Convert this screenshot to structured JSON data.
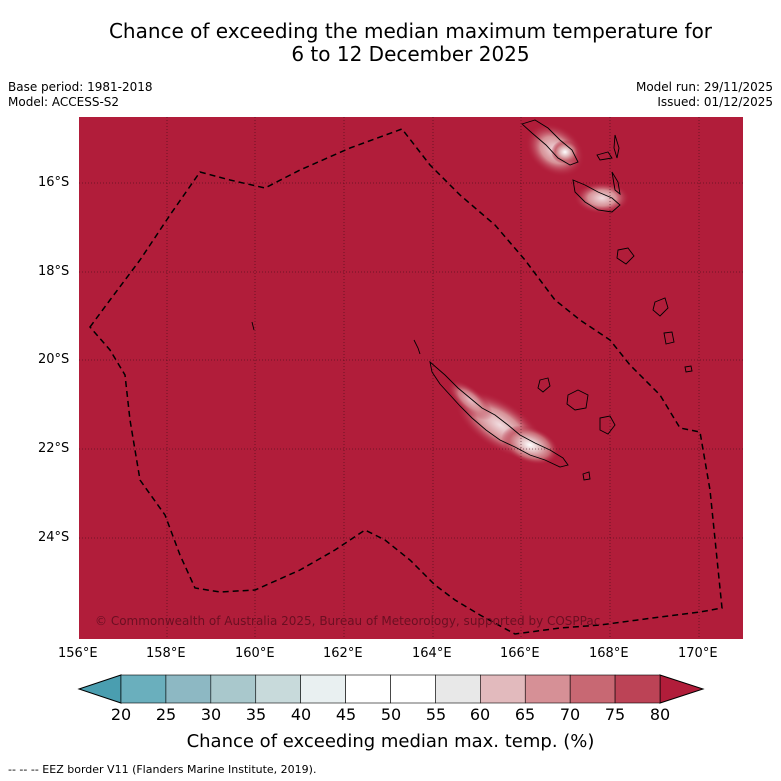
{
  "title": {
    "line1": "Chance of exceeding the median maximum temperature for",
    "line2": "6 to 12 December 2025"
  },
  "meta": {
    "base_period": "Base period: 1981-2018",
    "model": "Model: ACCESS-S2",
    "model_run": "Model run: 29/11/2025",
    "issued": "Issued: 01/12/2025"
  },
  "map": {
    "extent": {
      "lon_min": 156,
      "lon_max": 171,
      "lat_min": -26,
      "lat_max": -14.6
    },
    "background_color": "#b11d3a",
    "lat_labels": [
      "16°S",
      "18°S",
      "20°S",
      "22°S",
      "24°S"
    ],
    "lon_labels": [
      "156°E",
      "158°E",
      "160°E",
      "162°E",
      "164°E",
      "166°E",
      "168°E",
      "170°E"
    ],
    "copyright": "© Commonwealth of Australia 2025, Bureau of Meteorology, supported by COSPPac"
  },
  "colorbar": {
    "ticks": [
      "20",
      "25",
      "30",
      "35",
      "40",
      "45",
      "50",
      "55",
      "60",
      "65",
      "70",
      "75",
      "80"
    ],
    "colors": [
      "#6aafbd",
      "#8db8c3",
      "#a9c8cc",
      "#c8dadb",
      "#e9f0f1",
      "#ffffff",
      "#ffffff",
      "#e8e8e8",
      "#e2babd",
      "#d69096",
      "#c86873",
      "#bc4356"
    ],
    "under_color": "#4a9eb0",
    "over_color": "#b11d3a",
    "title": "Chance of exceeding median max. temp. (%)"
  },
  "footnote": "--  --  -- EEZ border V11 (Flanders Marine Institute, 2019)."
}
